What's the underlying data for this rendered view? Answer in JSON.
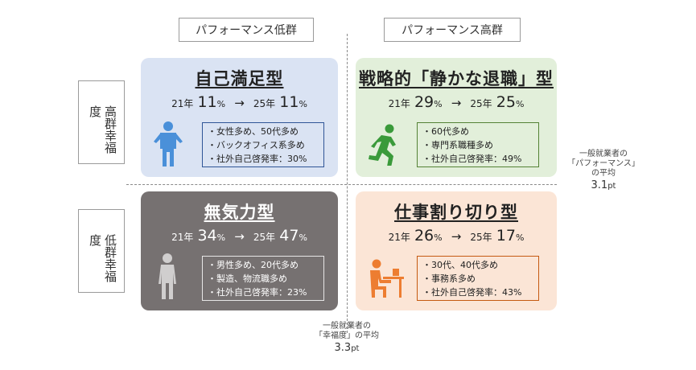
{
  "columns": {
    "low": "パフォーマンス低群",
    "high": "パフォーマンス高群"
  },
  "rows": {
    "high": "高群幸福度",
    "low": "低群幸福度"
  },
  "quadrants": {
    "top_left": {
      "title": "自己満足型",
      "year1": "21年",
      "value1": "11",
      "unit1": "%",
      "arrow": "→",
      "year2": "25年",
      "value2": "11",
      "unit2": "%",
      "bullets": [
        "・女性多め、50代多め",
        "・バックオフィス系多め",
        "・社外自己啓発率：30%"
      ],
      "bg": "#dae3f3",
      "icon": "standing-person-icon"
    },
    "top_right": {
      "title": "戦略的「静かな退職」型",
      "year1": "21年",
      "value1": "29",
      "unit1": "%",
      "arrow": "→",
      "year2": "25年",
      "value2": "25",
      "unit2": "%",
      "bullets": [
        "・60代多め",
        "・専門系職種多め",
        "・社外自己啓発率：49%"
      ],
      "bg": "#e2efda",
      "icon": "running-person-icon"
    },
    "bottom_left": {
      "title": "無気力型",
      "year1": "21年",
      "value1": "34",
      "unit1": "%",
      "arrow": "→",
      "year2": "25年",
      "value2": "47",
      "unit2": "%",
      "bullets": [
        "・男性多め、20代多め",
        "・製造、物流職多め",
        "・社外自己啓発率：23%"
      ],
      "bg": "#767171",
      "icon": "slouching-person-icon"
    },
    "bottom_right": {
      "title": "仕事割り切り型",
      "year1": "21年",
      "value1": "26",
      "unit1": "%",
      "arrow": "→",
      "year2": "25年",
      "value2": "17",
      "unit2": "%",
      "bullets": [
        "・30代、40代多め",
        "・事務系多め",
        "・社外自己啓発率：43%"
      ],
      "bg": "#fbe5d6",
      "icon": "desk-worker-icon"
    }
  },
  "avg_performance": {
    "line1": "一般就業者の",
    "line2": "「パフォーマンス」",
    "line3": "の平均",
    "value": "3.1",
    "unit": "pt"
  },
  "avg_happiness": {
    "line1": "一般就業者の",
    "line2": "「幸福度」の平均",
    "value": "3.3",
    "unit": "pt"
  }
}
